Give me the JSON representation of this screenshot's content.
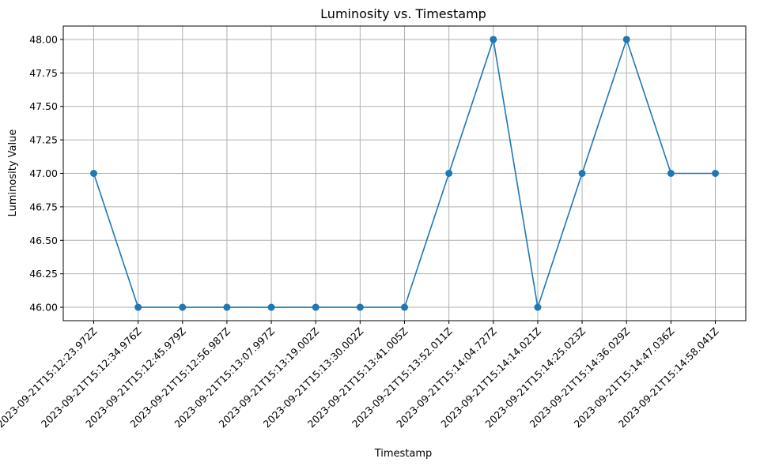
{
  "chart_data": {
    "type": "line",
    "title": "Luminosity vs. Timestamp",
    "xlabel": "Timestamp",
    "ylabel": "Luminosity Value",
    "categories": [
      "2023-09-21T15:12:23.972Z",
      "2023-09-21T15:12:34.976Z",
      "2023-09-21T15:12:45.979Z",
      "2023-09-21T15:12:56.987Z",
      "2023-09-21T15:13:07.997Z",
      "2023-09-21T15:13:19.002Z",
      "2023-09-21T15:13:30.002Z",
      "2023-09-21T15:13:41.005Z",
      "2023-09-21T15:13:52.011Z",
      "2023-09-21T15:14:04.727Z",
      "2023-09-21T15:14:14.021Z",
      "2023-09-21T15:14:25.023Z",
      "2023-09-21T15:14:36.029Z",
      "2023-09-21T15:14:47.036Z",
      "2023-09-21T15:14:58.041Z"
    ],
    "series": [
      {
        "values": [
          47,
          46,
          46,
          46,
          46,
          46,
          46,
          46,
          47,
          48,
          46,
          47,
          48,
          47,
          47
        ],
        "color": "#1f77b4",
        "marker": "circle"
      }
    ],
    "ylim": [
      45.9,
      48.1
    ],
    "yticks": [
      46.0,
      46.25,
      46.5,
      46.75,
      47.0,
      47.25,
      47.5,
      47.75,
      48.0
    ],
    "ytick_labels": [
      "46.00",
      "46.25",
      "46.50",
      "46.75",
      "47.00",
      "47.25",
      "47.50",
      "47.75",
      "48.00"
    ],
    "grid": true,
    "grid_color": "#b0b0b0",
    "legend": false
  }
}
